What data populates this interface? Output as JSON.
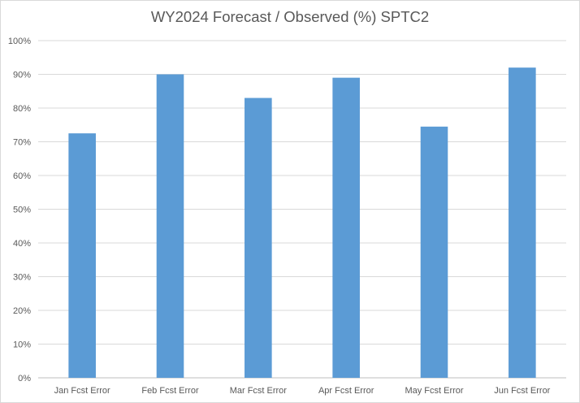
{
  "chart_data": {
    "type": "bar",
    "title": "WY2024 Forecast / Observed (%) SPTC2",
    "categories": [
      "Jan Fcst Error",
      "Feb Fcst Error",
      "Mar Fcst Error",
      "Apr Fcst Error",
      "May Fcst Error",
      "Jun Fcst Error"
    ],
    "values": [
      72.5,
      90,
      83,
      89,
      74.5,
      92
    ],
    "ylim": [
      0,
      100
    ],
    "y_ticks": [
      "0%",
      "10%",
      "20%",
      "30%",
      "40%",
      "50%",
      "60%",
      "70%",
      "80%",
      "90%",
      "100%"
    ],
    "grid": true,
    "legend": "none",
    "bar_color": "#5b9bd5",
    "grid_color": "#d9d9d9",
    "text_color": "#595959"
  }
}
